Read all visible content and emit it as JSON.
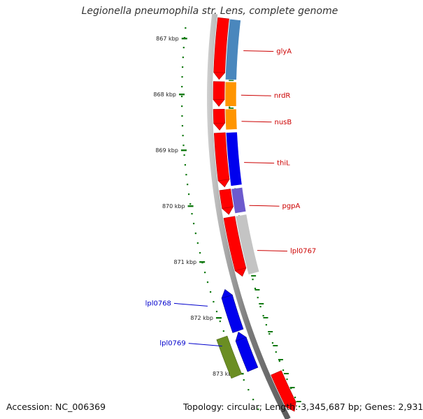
{
  "title": "Legionella pneumophila str. Lens, complete genome",
  "colors": {
    "forward_strand": "#ff0000",
    "tick": "#127a12",
    "label_right": "#cc0000",
    "label_left": "#0000cc",
    "backbone": "#888888"
  },
  "ticks": [
    "867 kbp",
    "868 kbp",
    "869 kbp",
    "870 kbp",
    "871 kbp",
    "872 kbp",
    "873 kbp"
  ],
  "forward_genes": [
    {
      "start": 866.62,
      "end": 867.73
    },
    {
      "start": 867.77,
      "end": 868.22
    },
    {
      "start": 868.27,
      "end": 868.65
    },
    {
      "start": 868.7,
      "end": 869.68
    },
    {
      "start": 869.73,
      "end": 870.18
    },
    {
      "start": 870.23,
      "end": 871.3
    },
    {
      "start": 873.05,
      "end": 873.75
    }
  ],
  "feature_genes": [
    {
      "name": "glyA",
      "start": 866.62,
      "end": 867.73,
      "color": "#4a87bd",
      "side": "right"
    },
    {
      "name": "nrdR",
      "start": 867.77,
      "end": 868.22,
      "color": "#ff9500",
      "side": "right"
    },
    {
      "name": "nusB",
      "start": 868.27,
      "end": 868.65,
      "color": "#ff9500",
      "side": "right"
    },
    {
      "name": "thiL",
      "start": 868.7,
      "end": 869.68,
      "color": "#0000ee",
      "side": "right"
    },
    {
      "name": "pgpA",
      "start": 869.73,
      "end": 870.18,
      "color": "#6c5acd",
      "side": "right"
    },
    {
      "name": "lpl0767",
      "start": 870.23,
      "end": 871.3,
      "color": "#c4c4c4",
      "side": "right"
    },
    {
      "name": "lpl0768",
      "start": 871.44,
      "end": 872.17,
      "color": "#0000ee",
      "side": "left",
      "lane": "inner"
    },
    {
      "name": "lpl0769",
      "start": 872.19,
      "end": 872.85,
      "color": "#0000ee",
      "side": "left",
      "lane": "inner"
    },
    {
      "name": "",
      "start": 872.19,
      "end": 872.85,
      "color": "#6b8e23",
      "side": "left",
      "lane": "outer"
    }
  ],
  "accession": "Accession: NC_006369",
  "stats": "Topology: circular; Length: 3,345,687 bp; Genes: 2,931"
}
